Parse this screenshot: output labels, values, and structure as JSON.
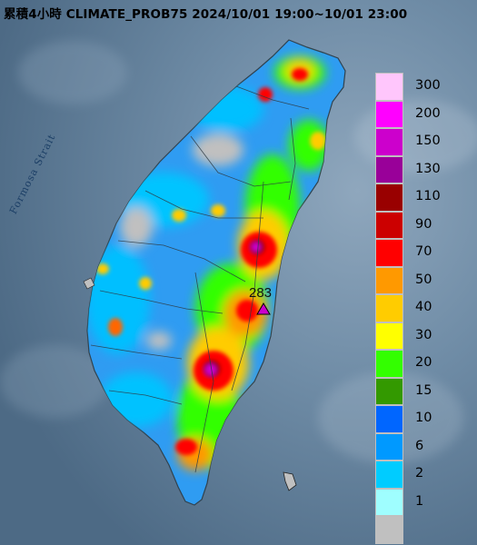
{
  "title": "累積4小時 CLIMATE_PROB75 2024/10/01 19:00~10/01 23:00",
  "strait_label": "Formosa Strait",
  "max_value_label": "283",
  "legend": [
    {
      "label": "300",
      "color": "#ffc6fc"
    },
    {
      "label": "200",
      "color": "#ff00ff"
    },
    {
      "label": "150",
      "color": "#cc00cc"
    },
    {
      "label": "130",
      "color": "#990099"
    },
    {
      "label": "110",
      "color": "#990000"
    },
    {
      "label": "90",
      "color": "#cc0000"
    },
    {
      "label": "70",
      "color": "#ff0000"
    },
    {
      "label": "50",
      "color": "#ff9900"
    },
    {
      "label": "40",
      "color": "#ffcc00"
    },
    {
      "label": "30",
      "color": "#ffff00"
    },
    {
      "label": "20",
      "color": "#33ff00"
    },
    {
      "label": "15",
      "color": "#339900"
    },
    {
      "label": "10",
      "color": "#0066ff"
    },
    {
      "label": "6",
      "color": "#0099ff"
    },
    {
      "label": "2",
      "color": "#00ccff"
    },
    {
      "label": "1",
      "color": "#9ffeff"
    },
    {
      "label": "",
      "color": "#c0c0c0"
    }
  ]
}
